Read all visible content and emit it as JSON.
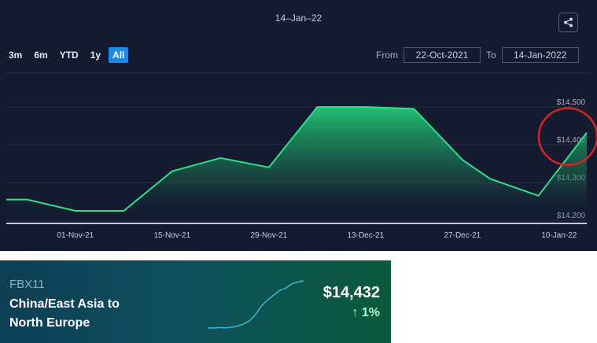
{
  "header": {
    "date": "14–Jan–22"
  },
  "range_buttons": [
    {
      "label": "3m",
      "active": false
    },
    {
      "label": "6m",
      "active": false
    },
    {
      "label": "YTD",
      "active": false
    },
    {
      "label": "1y",
      "active": false
    },
    {
      "label": "All",
      "active": true
    }
  ],
  "date_range": {
    "from_label": "From",
    "from_value": "22-Oct-2021",
    "to_label": "To",
    "to_value": "14-Jan-2022"
  },
  "colors": {
    "background": "#141a30",
    "line": "#2fe08a",
    "accent": "#1e88e5",
    "highlight_circle": "#d62424"
  },
  "chart_data": {
    "type": "area",
    "x": [
      "2021-10-22",
      "2021-10-25",
      "2021-11-01",
      "2021-11-08",
      "2021-11-15",
      "2021-11-22",
      "2021-11-29",
      "2021-12-06",
      "2021-12-13",
      "2021-12-20",
      "2021-12-27",
      "2021-12-31",
      "2022-01-07",
      "2022-01-14"
    ],
    "series": [
      {
        "values": [
          14255,
          14255,
          14225,
          14225,
          14330,
          14365,
          14340,
          14500,
          14500,
          14495,
          14360,
          14310,
          14265,
          14432
        ]
      }
    ],
    "x_ticks": [
      "01-Nov-21",
      "15-Nov-21",
      "29-Nov-21",
      "13-Dec-21",
      "27-Dec-21",
      "10-Jan-22"
    ],
    "y_ticks": [
      "$14,200",
      "$14,300",
      "$14,400",
      "$14,500"
    ],
    "ylim": [
      14200,
      14500
    ],
    "grid": true,
    "annotation": "red circle around latest point"
  },
  "fbx_card": {
    "code": "FBX11",
    "route_line1": "China/East Asia to",
    "route_line2": "North Europe",
    "price": "$14,432",
    "change": "1%",
    "change_direction": "up",
    "sparkline": [
      1500,
      1480,
      1600,
      1550,
      1700,
      2000,
      2600,
      3500,
      5200,
      7600,
      9200,
      10500,
      11800,
      12400,
      13600,
      14100,
      14432
    ]
  }
}
